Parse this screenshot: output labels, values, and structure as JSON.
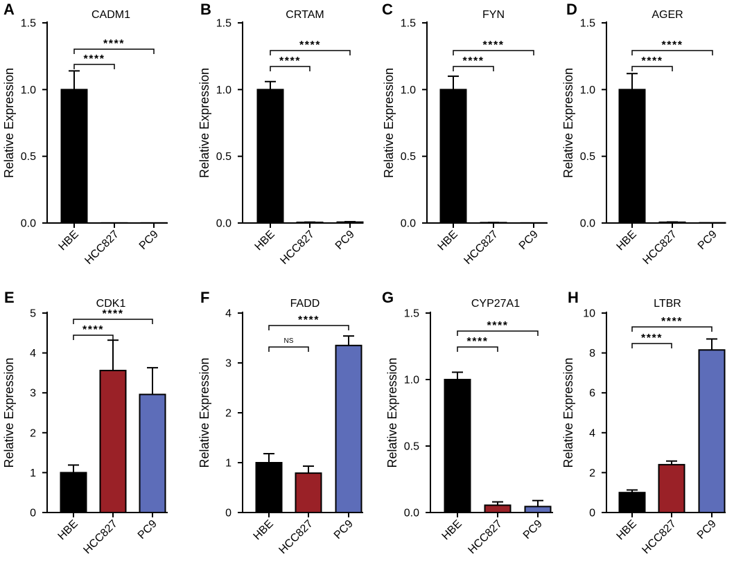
{
  "chart_data": [
    {
      "panel": "A",
      "type": "bar",
      "title": "CADM1",
      "xlabel": "",
      "ylabel": "Relative Expression",
      "categories": [
        "HBE",
        "HCC827",
        "PC9"
      ],
      "values": [
        1.0,
        0.001,
        0.001
      ],
      "errors": [
        0.14,
        0,
        0
      ],
      "ylim": [
        0,
        1.5
      ],
      "yticks": [
        0,
        0.5,
        1.0,
        1.5
      ],
      "ytick_labels": [
        "0.0",
        "0.5",
        "1.0",
        "1.5"
      ],
      "colors": [
        "#000000",
        "#000000",
        "#000000"
      ],
      "significance": [
        {
          "pair": [
            0,
            1
          ],
          "label": "****"
        },
        {
          "pair": [
            0,
            2
          ],
          "label": "****"
        }
      ]
    },
    {
      "panel": "B",
      "type": "bar",
      "title": "CRTAM",
      "xlabel": "",
      "ylabel": "Relative Expression",
      "categories": [
        "HBE",
        "HCC827",
        "PC9"
      ],
      "values": [
        1.0,
        0.005,
        0.007
      ],
      "errors": [
        0.06,
        0.002,
        0.003
      ],
      "ylim": [
        0,
        1.5
      ],
      "yticks": [
        0,
        0.5,
        1.0,
        1.5
      ],
      "ytick_labels": [
        "0.0",
        "0.5",
        "1.0",
        "1.5"
      ],
      "colors": [
        "#000000",
        "#000000",
        "#000000"
      ],
      "significance": [
        {
          "pair": [
            0,
            1
          ],
          "label": "****"
        },
        {
          "pair": [
            0,
            2
          ],
          "label": "****"
        }
      ]
    },
    {
      "panel": "C",
      "type": "bar",
      "title": "FYN",
      "xlabel": "",
      "ylabel": "Relative Expression",
      "categories": [
        "HBE",
        "HCC827",
        "PC9"
      ],
      "values": [
        1.0,
        0.003,
        0.001
      ],
      "errors": [
        0.1,
        0.001,
        0
      ],
      "ylim": [
        0,
        1.5
      ],
      "yticks": [
        0,
        0.5,
        1.0,
        1.5
      ],
      "ytick_labels": [
        "0.0",
        "0.5",
        "1.0",
        "1.5"
      ],
      "colors": [
        "#000000",
        "#000000",
        "#000000"
      ],
      "significance": [
        {
          "pair": [
            0,
            1
          ],
          "label": "****"
        },
        {
          "pair": [
            0,
            2
          ],
          "label": "****"
        }
      ]
    },
    {
      "panel": "D",
      "type": "bar",
      "title": "AGER",
      "xlabel": "",
      "ylabel": "Relative Expression",
      "categories": [
        "HBE",
        "HCC827",
        "PC9"
      ],
      "values": [
        1.0,
        0.006,
        0.002
      ],
      "errors": [
        0.12,
        0.002,
        0
      ],
      "ylim": [
        0,
        1.5
      ],
      "yticks": [
        0,
        0.5,
        1.0,
        1.5
      ],
      "ytick_labels": [
        "0.0",
        "0.5",
        "1.0",
        "1.5"
      ],
      "colors": [
        "#000000",
        "#000000",
        "#000000"
      ],
      "significance": [
        {
          "pair": [
            0,
            1
          ],
          "label": "****"
        },
        {
          "pair": [
            0,
            2
          ],
          "label": "****"
        }
      ]
    },
    {
      "panel": "E",
      "type": "bar",
      "title": "CDK1",
      "xlabel": "",
      "ylabel": "Relative Expression",
      "categories": [
        "HBE",
        "HCC827",
        "PC9"
      ],
      "values": [
        1.0,
        3.56,
        2.96
      ],
      "errors": [
        0.19,
        0.76,
        0.67
      ],
      "ylim": [
        0,
        5
      ],
      "yticks": [
        0,
        1,
        2,
        3,
        4,
        5
      ],
      "ytick_labels": [
        "0",
        "1",
        "2",
        "3",
        "4",
        "5"
      ],
      "colors": [
        "#000000",
        "#9a2127",
        "#5d6db9"
      ],
      "significance": [
        {
          "pair": [
            0,
            1
          ],
          "label": "****"
        },
        {
          "pair": [
            0,
            2
          ],
          "label": "****"
        }
      ]
    },
    {
      "panel": "F",
      "type": "bar",
      "title": "FADD",
      "xlabel": "",
      "ylabel": "Relative Expression",
      "categories": [
        "HBE",
        "HCC827",
        "PC9"
      ],
      "values": [
        1.0,
        0.79,
        3.35
      ],
      "errors": [
        0.18,
        0.14,
        0.19
      ],
      "ylim": [
        0,
        4
      ],
      "yticks": [
        0,
        1,
        2,
        3,
        4
      ],
      "ytick_labels": [
        "0",
        "1",
        "2",
        "3",
        "4"
      ],
      "colors": [
        "#000000",
        "#9a2127",
        "#5d6db9"
      ],
      "significance": [
        {
          "pair": [
            0,
            1
          ],
          "label": "NS"
        },
        {
          "pair": [
            0,
            2
          ],
          "label": "****"
        }
      ]
    },
    {
      "panel": "G",
      "type": "bar",
      "title": "CYP27A1",
      "xlabel": "",
      "ylabel": "Relative Expression",
      "categories": [
        "HBE",
        "HCC827",
        "PC9"
      ],
      "values": [
        1.0,
        0.055,
        0.045
      ],
      "errors": [
        0.055,
        0.025,
        0.045
      ],
      "ylim": [
        0,
        1.5
      ],
      "yticks": [
        0,
        0.5,
        1.0,
        1.5
      ],
      "ytick_labels": [
        "0.0",
        "0.5",
        "1.0",
        "1.5"
      ],
      "colors": [
        "#000000",
        "#9a2127",
        "#5d6db9"
      ],
      "significance": [
        {
          "pair": [
            0,
            1
          ],
          "label": "****"
        },
        {
          "pair": [
            0,
            2
          ],
          "label": "****"
        }
      ]
    },
    {
      "panel": "H",
      "type": "bar",
      "title": "LTBR",
      "xlabel": "",
      "ylabel": "Relative Expression",
      "categories": [
        "HBE",
        "HCC827",
        "PC9"
      ],
      "values": [
        1.0,
        2.4,
        8.15
      ],
      "errors": [
        0.13,
        0.18,
        0.55
      ],
      "ylim": [
        0,
        10
      ],
      "yticks": [
        0,
        2,
        4,
        6,
        8,
        10
      ],
      "ytick_labels": [
        "0",
        "2",
        "4",
        "6",
        "8",
        "10"
      ],
      "colors": [
        "#000000",
        "#9a2127",
        "#5d6db9"
      ],
      "significance": [
        {
          "pair": [
            0,
            1
          ],
          "label": "****"
        },
        {
          "pair": [
            0,
            2
          ],
          "label": "****"
        }
      ]
    }
  ]
}
